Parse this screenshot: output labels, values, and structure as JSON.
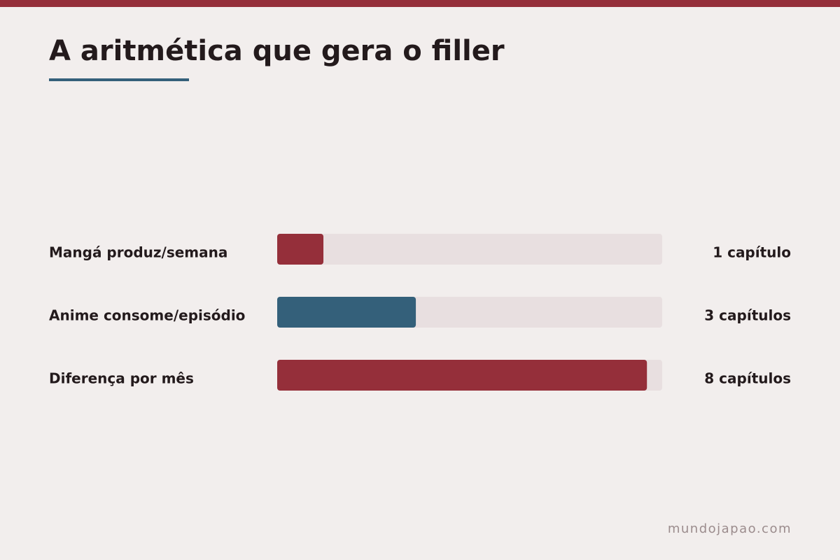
{
  "chart_data": {
    "type": "hbar",
    "title": "A aritmética que gera o filler",
    "categories": [
      "Mangá produz/semana",
      "Anime consome/episódio",
      "Diferença por mês"
    ],
    "values": [
      1,
      3,
      8
    ],
    "value_labels": [
      "1 capítulo",
      "3 capítulos",
      "8 capítulos"
    ],
    "colors": [
      "#952f3a",
      "#34607a",
      "#952f3a"
    ],
    "xlim": [
      0,
      8.33
    ],
    "source": "mundojapao.com"
  }
}
